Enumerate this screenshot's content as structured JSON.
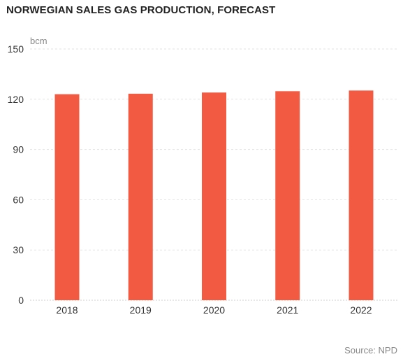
{
  "chart_data": {
    "type": "bar",
    "title": "NORWEGIAN SALES GAS PRODUCTION, FORECAST",
    "ylabel": "bcm",
    "xlabel": "",
    "categories": [
      "2018",
      "2019",
      "2020",
      "2021",
      "2022"
    ],
    "values": [
      123,
      123.3,
      124,
      124.8,
      125.2
    ],
    "ylim": [
      0,
      150
    ],
    "yticks": [
      0,
      30,
      60,
      90,
      120,
      150
    ],
    "grid": true,
    "legend": "none",
    "bar_color": "#f25a42",
    "source": "Source: NPD"
  }
}
